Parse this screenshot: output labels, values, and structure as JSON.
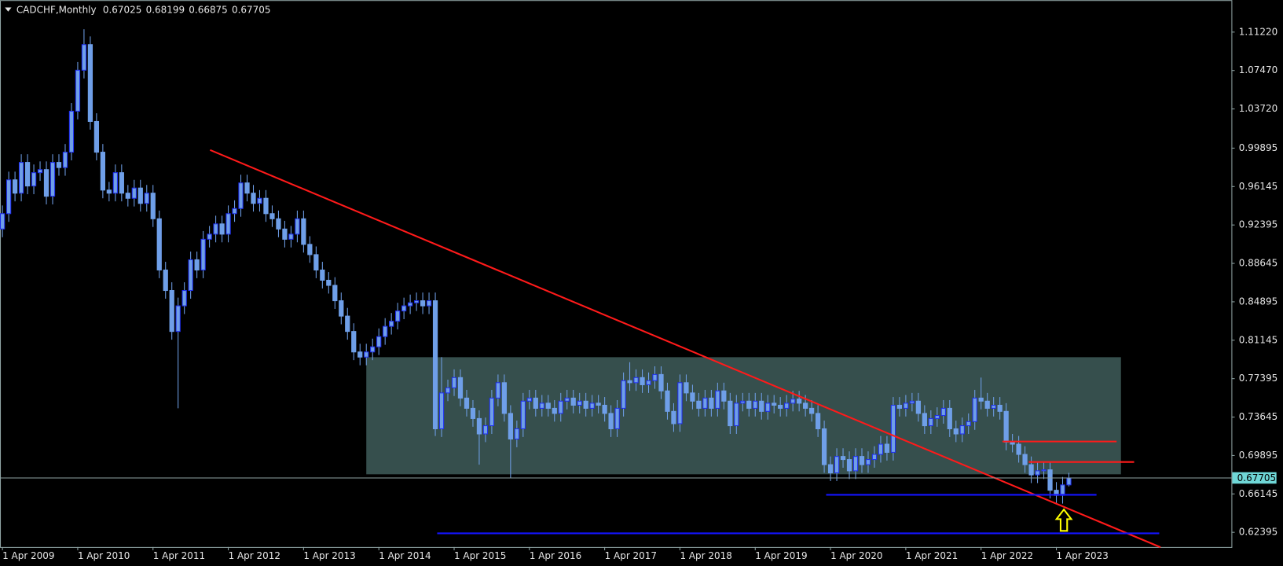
{
  "chart_data": {
    "type": "candlestick",
    "symbol": "CADCHF,Monthly",
    "categories": [
      "1 Apr 2009",
      null,
      null,
      null,
      null,
      null,
      null,
      null,
      null,
      null,
      null,
      null,
      "1 Apr 2010",
      null,
      null,
      null,
      null,
      null,
      null,
      null,
      null,
      null,
      null,
      null,
      "1 Apr 2011",
      null,
      null,
      null,
      null,
      null,
      null,
      null,
      null,
      null,
      null,
      null,
      "1 Apr 2012",
      null,
      null,
      null,
      null,
      null,
      null,
      null,
      null,
      null,
      null,
      null,
      "1 Apr 2013",
      null,
      null,
      null,
      null,
      null,
      null,
      null,
      null,
      null,
      null,
      null,
      "1 Apr 2014",
      null,
      null,
      null,
      null,
      null,
      null,
      null,
      null,
      null,
      null,
      null,
      "1 Apr 2015",
      null,
      null,
      null,
      null,
      null,
      null,
      null,
      null,
      null,
      null,
      null,
      "1 Apr 2016",
      null,
      null,
      null,
      null,
      null,
      null,
      null,
      null,
      null,
      null,
      null,
      "1 Apr 2017",
      null,
      null,
      null,
      null,
      null,
      null,
      null,
      null,
      null,
      null,
      null,
      "1 Apr 2018",
      null,
      null,
      null,
      null,
      null,
      null,
      null,
      null,
      null,
      null,
      null,
      "1 Apr 2019",
      null,
      null,
      null,
      null,
      null,
      null,
      null,
      null,
      null,
      null,
      null,
      "1 Apr 2020",
      null,
      null,
      null,
      null,
      null,
      null,
      null,
      null,
      null,
      null,
      null,
      "1 Apr 2021",
      null,
      null,
      null,
      null,
      null,
      null,
      null,
      null,
      null,
      null,
      null,
      "1 Apr 2022",
      null,
      null,
      null,
      null,
      null,
      null,
      null,
      null,
      null,
      null,
      null,
      "1 Apr 2023",
      null,
      null
    ],
    "open": [
      0.92,
      0.935,
      0.968,
      0.955,
      0.985,
      0.962,
      0.975,
      0.978,
      0.952,
      0.985,
      0.98,
      0.995,
      1.035,
      1.075,
      1.1,
      1.025,
      0.995,
      0.958,
      0.955,
      0.975,
      0.955,
      0.95,
      0.96,
      0.945,
      0.955,
      0.93,
      0.88,
      0.86,
      0.82,
      0.845,
      0.86,
      0.89,
      0.88,
      0.91,
      0.915,
      0.925,
      0.915,
      0.935,
      0.94,
      0.965,
      0.955,
      0.945,
      0.95,
      0.935,
      0.93,
      0.92,
      0.91,
      0.915,
      0.93,
      0.905,
      0.895,
      0.88,
      0.87,
      0.865,
      0.85,
      0.835,
      0.82,
      0.8,
      0.795,
      0.8,
      0.805,
      0.815,
      0.825,
      0.83,
      0.84,
      0.845,
      0.848,
      0.85,
      0.845,
      0.85,
      0.725,
      0.76,
      0.765,
      0.775,
      0.755,
      0.745,
      0.735,
      0.72,
      0.728,
      0.755,
      0.77,
      0.74,
      0.715,
      0.725,
      0.752,
      0.755,
      0.745,
      0.75,
      0.745,
      0.74,
      0.752,
      0.755,
      0.748,
      0.752,
      0.745,
      0.75,
      0.748,
      0.74,
      0.725,
      0.745,
      0.772,
      0.77,
      0.775,
      0.768,
      0.772,
      0.778,
      0.762,
      0.742,
      0.73,
      0.77,
      0.76,
      0.752,
      0.745,
      0.755,
      0.745,
      0.762,
      0.752,
      0.728,
      0.75,
      0.752,
      0.745,
      0.752,
      0.742,
      0.75,
      0.748,
      0.745,
      0.75,
      0.754,
      0.75,
      0.745,
      0.74,
      0.725,
      0.69,
      0.682,
      0.698,
      0.695,
      0.684,
      0.698,
      0.69,
      0.695,
      0.7,
      0.71,
      0.702,
      0.748,
      0.745,
      0.75,
      0.752,
      0.74,
      0.728,
      0.735,
      0.738,
      0.745,
      0.725,
      0.72,
      0.728,
      0.732,
      0.755,
      0.752,
      0.745,
      0.748,
      0.742,
      0.712,
      0.71,
      0.7,
      0.69,
      0.68,
      0.684,
      0.685,
      0.665,
      0.66,
      0.67025
    ],
    "high": [
      0.943,
      0.976,
      0.976,
      0.993,
      0.993,
      0.983,
      0.986,
      0.986,
      0.993,
      0.993,
      1.003,
      1.043,
      1.083,
      1.115,
      1.108,
      1.033,
      1.003,
      0.966,
      0.983,
      0.983,
      0.963,
      0.968,
      0.968,
      0.963,
      0.963,
      0.938,
      0.888,
      0.868,
      0.853,
      0.868,
      0.898,
      0.898,
      0.918,
      0.923,
      0.933,
      0.933,
      0.943,
      0.948,
      0.973,
      0.973,
      0.963,
      0.958,
      0.958,
      0.943,
      0.938,
      0.928,
      0.923,
      0.938,
      0.938,
      0.913,
      0.903,
      0.888,
      0.878,
      0.873,
      0.858,
      0.843,
      0.828,
      0.808,
      0.808,
      0.813,
      0.823,
      0.833,
      0.838,
      0.848,
      0.853,
      0.856,
      0.858,
      0.858,
      0.858,
      0.858,
      0.795,
      0.773,
      0.783,
      0.783,
      0.763,
      0.753,
      0.743,
      0.736,
      0.763,
      0.778,
      0.778,
      0.748,
      0.733,
      0.76,
      0.763,
      0.763,
      0.758,
      0.758,
      0.753,
      0.76,
      0.763,
      0.763,
      0.76,
      0.76,
      0.758,
      0.758,
      0.756,
      0.748,
      0.753,
      0.78,
      0.79,
      0.783,
      0.783,
      0.78,
      0.786,
      0.786,
      0.77,
      0.75,
      0.778,
      0.778,
      0.768,
      0.76,
      0.763,
      0.763,
      0.77,
      0.77,
      0.76,
      0.758,
      0.76,
      0.76,
      0.76,
      0.76,
      0.758,
      0.758,
      0.756,
      0.758,
      0.762,
      0.762,
      0.758,
      0.753,
      0.748,
      0.733,
      0.698,
      0.706,
      0.706,
      0.703,
      0.706,
      0.706,
      0.703,
      0.708,
      0.718,
      0.718,
      0.756,
      0.756,
      0.758,
      0.76,
      0.76,
      0.748,
      0.743,
      0.746,
      0.753,
      0.753,
      0.733,
      0.736,
      0.74,
      0.763,
      0.775,
      0.76,
      0.756,
      0.756,
      0.75,
      0.72,
      0.718,
      0.708,
      0.698,
      0.692,
      0.692,
      0.693,
      0.673,
      0.678,
      0.68199
    ],
    "low": [
      0.912,
      0.927,
      0.947,
      0.947,
      0.954,
      0.954,
      0.967,
      0.944,
      0.944,
      0.972,
      0.972,
      0.987,
      1.027,
      1.067,
      1.017,
      0.987,
      0.95,
      0.947,
      0.947,
      0.947,
      0.942,
      0.942,
      0.937,
      0.937,
      0.922,
      0.872,
      0.852,
      0.812,
      0.745,
      0.837,
      0.852,
      0.872,
      0.872,
      0.902,
      0.907,
      0.907,
      0.907,
      0.927,
      0.932,
      0.947,
      0.937,
      0.937,
      0.927,
      0.922,
      0.912,
      0.902,
      0.902,
      0.907,
      0.897,
      0.887,
      0.872,
      0.862,
      0.857,
      0.842,
      0.827,
      0.812,
      0.792,
      0.787,
      0.787,
      0.792,
      0.797,
      0.807,
      0.817,
      0.822,
      0.832,
      0.837,
      0.84,
      0.837,
      0.837,
      0.718,
      0.717,
      0.752,
      0.757,
      0.747,
      0.737,
      0.727,
      0.69,
      0.712,
      0.72,
      0.747,
      0.732,
      0.677,
      0.707,
      0.717,
      0.744,
      0.737,
      0.737,
      0.737,
      0.732,
      0.732,
      0.744,
      0.74,
      0.74,
      0.737,
      0.737,
      0.74,
      0.732,
      0.717,
      0.717,
      0.737,
      0.762,
      0.762,
      0.76,
      0.76,
      0.764,
      0.754,
      0.734,
      0.722,
      0.722,
      0.752,
      0.744,
      0.737,
      0.737,
      0.737,
      0.737,
      0.744,
      0.72,
      0.72,
      0.742,
      0.737,
      0.737,
      0.734,
      0.734,
      0.74,
      0.737,
      0.737,
      0.742,
      0.742,
      0.737,
      0.732,
      0.717,
      0.682,
      0.674,
      0.674,
      0.687,
      0.676,
      0.676,
      0.682,
      0.682,
      0.687,
      0.692,
      0.694,
      0.694,
      0.737,
      0.737,
      0.742,
      0.732,
      0.72,
      0.72,
      0.727,
      0.73,
      0.717,
      0.712,
      0.712,
      0.72,
      0.724,
      0.744,
      0.737,
      0.737,
      0.734,
      0.704,
      0.702,
      0.692,
      0.682,
      0.672,
      0.672,
      0.676,
      0.657,
      0.652,
      0.652,
      0.66875
    ],
    "close": [
      0.935,
      0.968,
      0.955,
      0.985,
      0.962,
      0.975,
      0.978,
      0.952,
      0.985,
      0.98,
      0.995,
      1.035,
      1.075,
      1.1,
      1.025,
      0.995,
      0.958,
      0.955,
      0.975,
      0.955,
      0.95,
      0.96,
      0.945,
      0.955,
      0.93,
      0.88,
      0.86,
      0.82,
      0.845,
      0.86,
      0.89,
      0.88,
      0.91,
      0.915,
      0.925,
      0.915,
      0.935,
      0.94,
      0.965,
      0.955,
      0.945,
      0.95,
      0.935,
      0.93,
      0.92,
      0.91,
      0.915,
      0.93,
      0.905,
      0.895,
      0.88,
      0.87,
      0.865,
      0.85,
      0.835,
      0.82,
      0.8,
      0.795,
      0.8,
      0.805,
      0.815,
      0.825,
      0.83,
      0.84,
      0.845,
      0.848,
      0.85,
      0.845,
      0.85,
      0.725,
      0.76,
      0.765,
      0.775,
      0.755,
      0.745,
      0.735,
      0.72,
      0.728,
      0.755,
      0.77,
      0.74,
      0.715,
      0.725,
      0.752,
      0.755,
      0.745,
      0.75,
      0.745,
      0.74,
      0.752,
      0.755,
      0.748,
      0.752,
      0.745,
      0.75,
      0.748,
      0.74,
      0.725,
      0.745,
      0.772,
      0.77,
      0.775,
      0.768,
      0.772,
      0.778,
      0.762,
      0.742,
      0.73,
      0.77,
      0.76,
      0.752,
      0.745,
      0.755,
      0.745,
      0.762,
      0.752,
      0.728,
      0.75,
      0.752,
      0.745,
      0.752,
      0.742,
      0.75,
      0.748,
      0.745,
      0.75,
      0.754,
      0.75,
      0.745,
      0.74,
      0.725,
      0.69,
      0.682,
      0.698,
      0.695,
      0.684,
      0.698,
      0.69,
      0.695,
      0.7,
      0.71,
      0.702,
      0.748,
      0.745,
      0.75,
      0.752,
      0.74,
      0.728,
      0.735,
      0.738,
      0.745,
      0.725,
      0.72,
      0.728,
      0.732,
      0.755,
      0.752,
      0.745,
      0.748,
      0.742,
      0.712,
      0.71,
      0.7,
      0.69,
      0.68,
      0.684,
      0.685,
      0.665,
      0.66,
      0.67025,
      0.67705
    ],
    "up_color": "#6f9fe8",
    "up_edge": "#1f2ff0",
    "down_color": "#6f9fe8",
    "ylim": [
      0.6096,
      1.1434
    ],
    "yticks": [
      {
        "value": 1.1122,
        "label": "1.11220"
      },
      {
        "value": 1.0747,
        "label": "1.07470"
      },
      {
        "value": 1.0372,
        "label": "1.03720"
      },
      0.99895,
      0.96145,
      0.92395,
      0.88645,
      0.84895,
      0.81145,
      0.77395,
      0.73645,
      0.69895,
      0.66145,
      0.62395
    ],
    "zone": {
      "x": [
        58.0,
        178.3
      ],
      "y": [
        0.6806,
        0.7949
      ],
      "color": "#364f4d"
    },
    "trendline": {
      "x": [
        33.1,
        184.6
      ],
      "y": [
        0.9971,
        0.6094
      ],
      "color": "#ff1a1a"
    },
    "levels": [
      {
        "x": [
          159.4,
          177.6
        ],
        "y": 0.7126,
        "color": "#ff1a1a"
      },
      {
        "x": [
          163.6,
          180.4
        ],
        "y": 0.6926,
        "color": "#ff1a1a"
      },
      {
        "x": [
          131.3,
          174.4
        ],
        "y": 0.6606,
        "color": "#1414ff"
      },
      {
        "x": [
          69.3,
          184.4
        ],
        "y": 0.623,
        "color": "#1414ff"
      }
    ],
    "arrow": {
      "x": 169.2,
      "y": [
        0.6254,
        0.6462
      ],
      "color": "#ffff00"
    }
  }
}
